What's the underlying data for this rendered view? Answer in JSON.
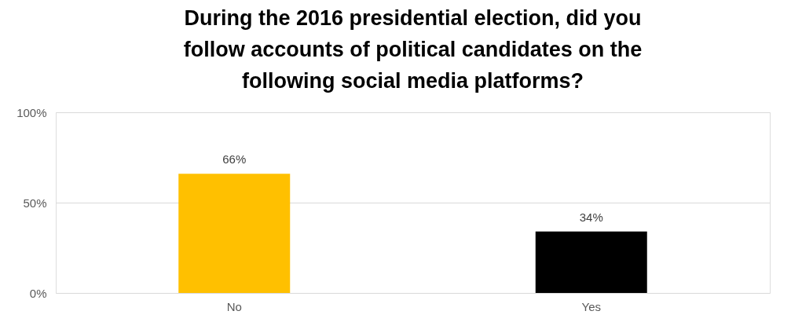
{
  "chart_data": {
    "type": "bar",
    "title": "During the 2016 presidential election, did you follow accounts of political candidates on the following social media platforms?",
    "categories": [
      "No",
      "Yes"
    ],
    "values": [
      66,
      34
    ],
    "colors": [
      "#ffc000",
      "#000000"
    ],
    "value_labels": [
      "66%",
      "34%"
    ],
    "ylim": [
      0,
      100
    ],
    "yticks": [
      {
        "value": 0,
        "label": "0%"
      },
      {
        "value": 50,
        "label": "50%"
      },
      {
        "value": 100,
        "label": "100%"
      }
    ],
    "grid": "y"
  }
}
